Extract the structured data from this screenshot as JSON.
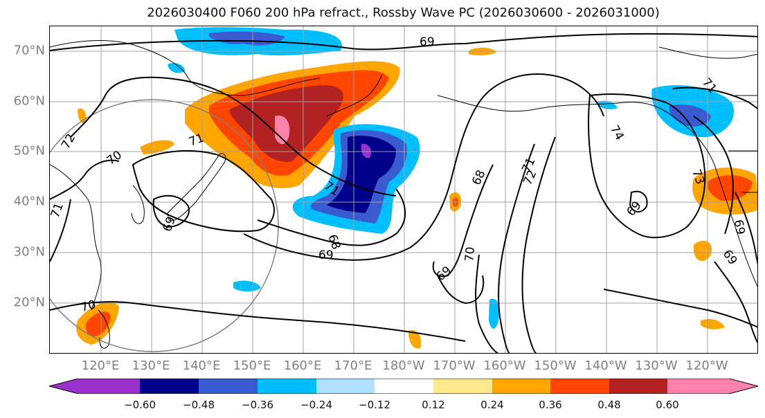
{
  "title": "2026030400 F060 200 hPa refract., Rossby Wave PC (2026030600 - 2026031000)",
  "latitude_labels": [
    "70°N",
    "60°N",
    "50°N",
    "40°N",
    "30°N",
    "20°N"
  ],
  "longitude_labels": [
    "120°E",
    "130°E",
    "140°E",
    "150°E",
    "160°E",
    "170°E",
    "180°W",
    "170°W",
    "160°W",
    "150°W",
    "140°W",
    "130°W",
    "120°W"
  ],
  "contour_labels": [
    "69",
    "72",
    "70",
    "71",
    "71",
    "69",
    "69",
    "68",
    "69",
    "68",
    "71",
    "72",
    "74",
    "71",
    "73",
    "69",
    "69",
    "70",
    "69",
    "70",
    "71"
  ],
  "colorbar": {
    "tick_labels": [
      "−0.60",
      "−0.48",
      "−0.36",
      "−0.24",
      "−0.12",
      "0.12",
      "0.24",
      "0.36",
      "0.48",
      "0.60"
    ],
    "colors": [
      "#9932cc",
      "#00008b",
      "#3a5bd0",
      "#00bfff",
      "#b0e0ff",
      "#ffffff",
      "#ffe98a",
      "#ffa500",
      "#ff4500",
      "#b22222",
      "#ff82ab"
    ]
  },
  "colors": {
    "contour": "#000000",
    "coastline": "#000000",
    "grid": "#a0a0a0",
    "circle": "#808080"
  }
}
